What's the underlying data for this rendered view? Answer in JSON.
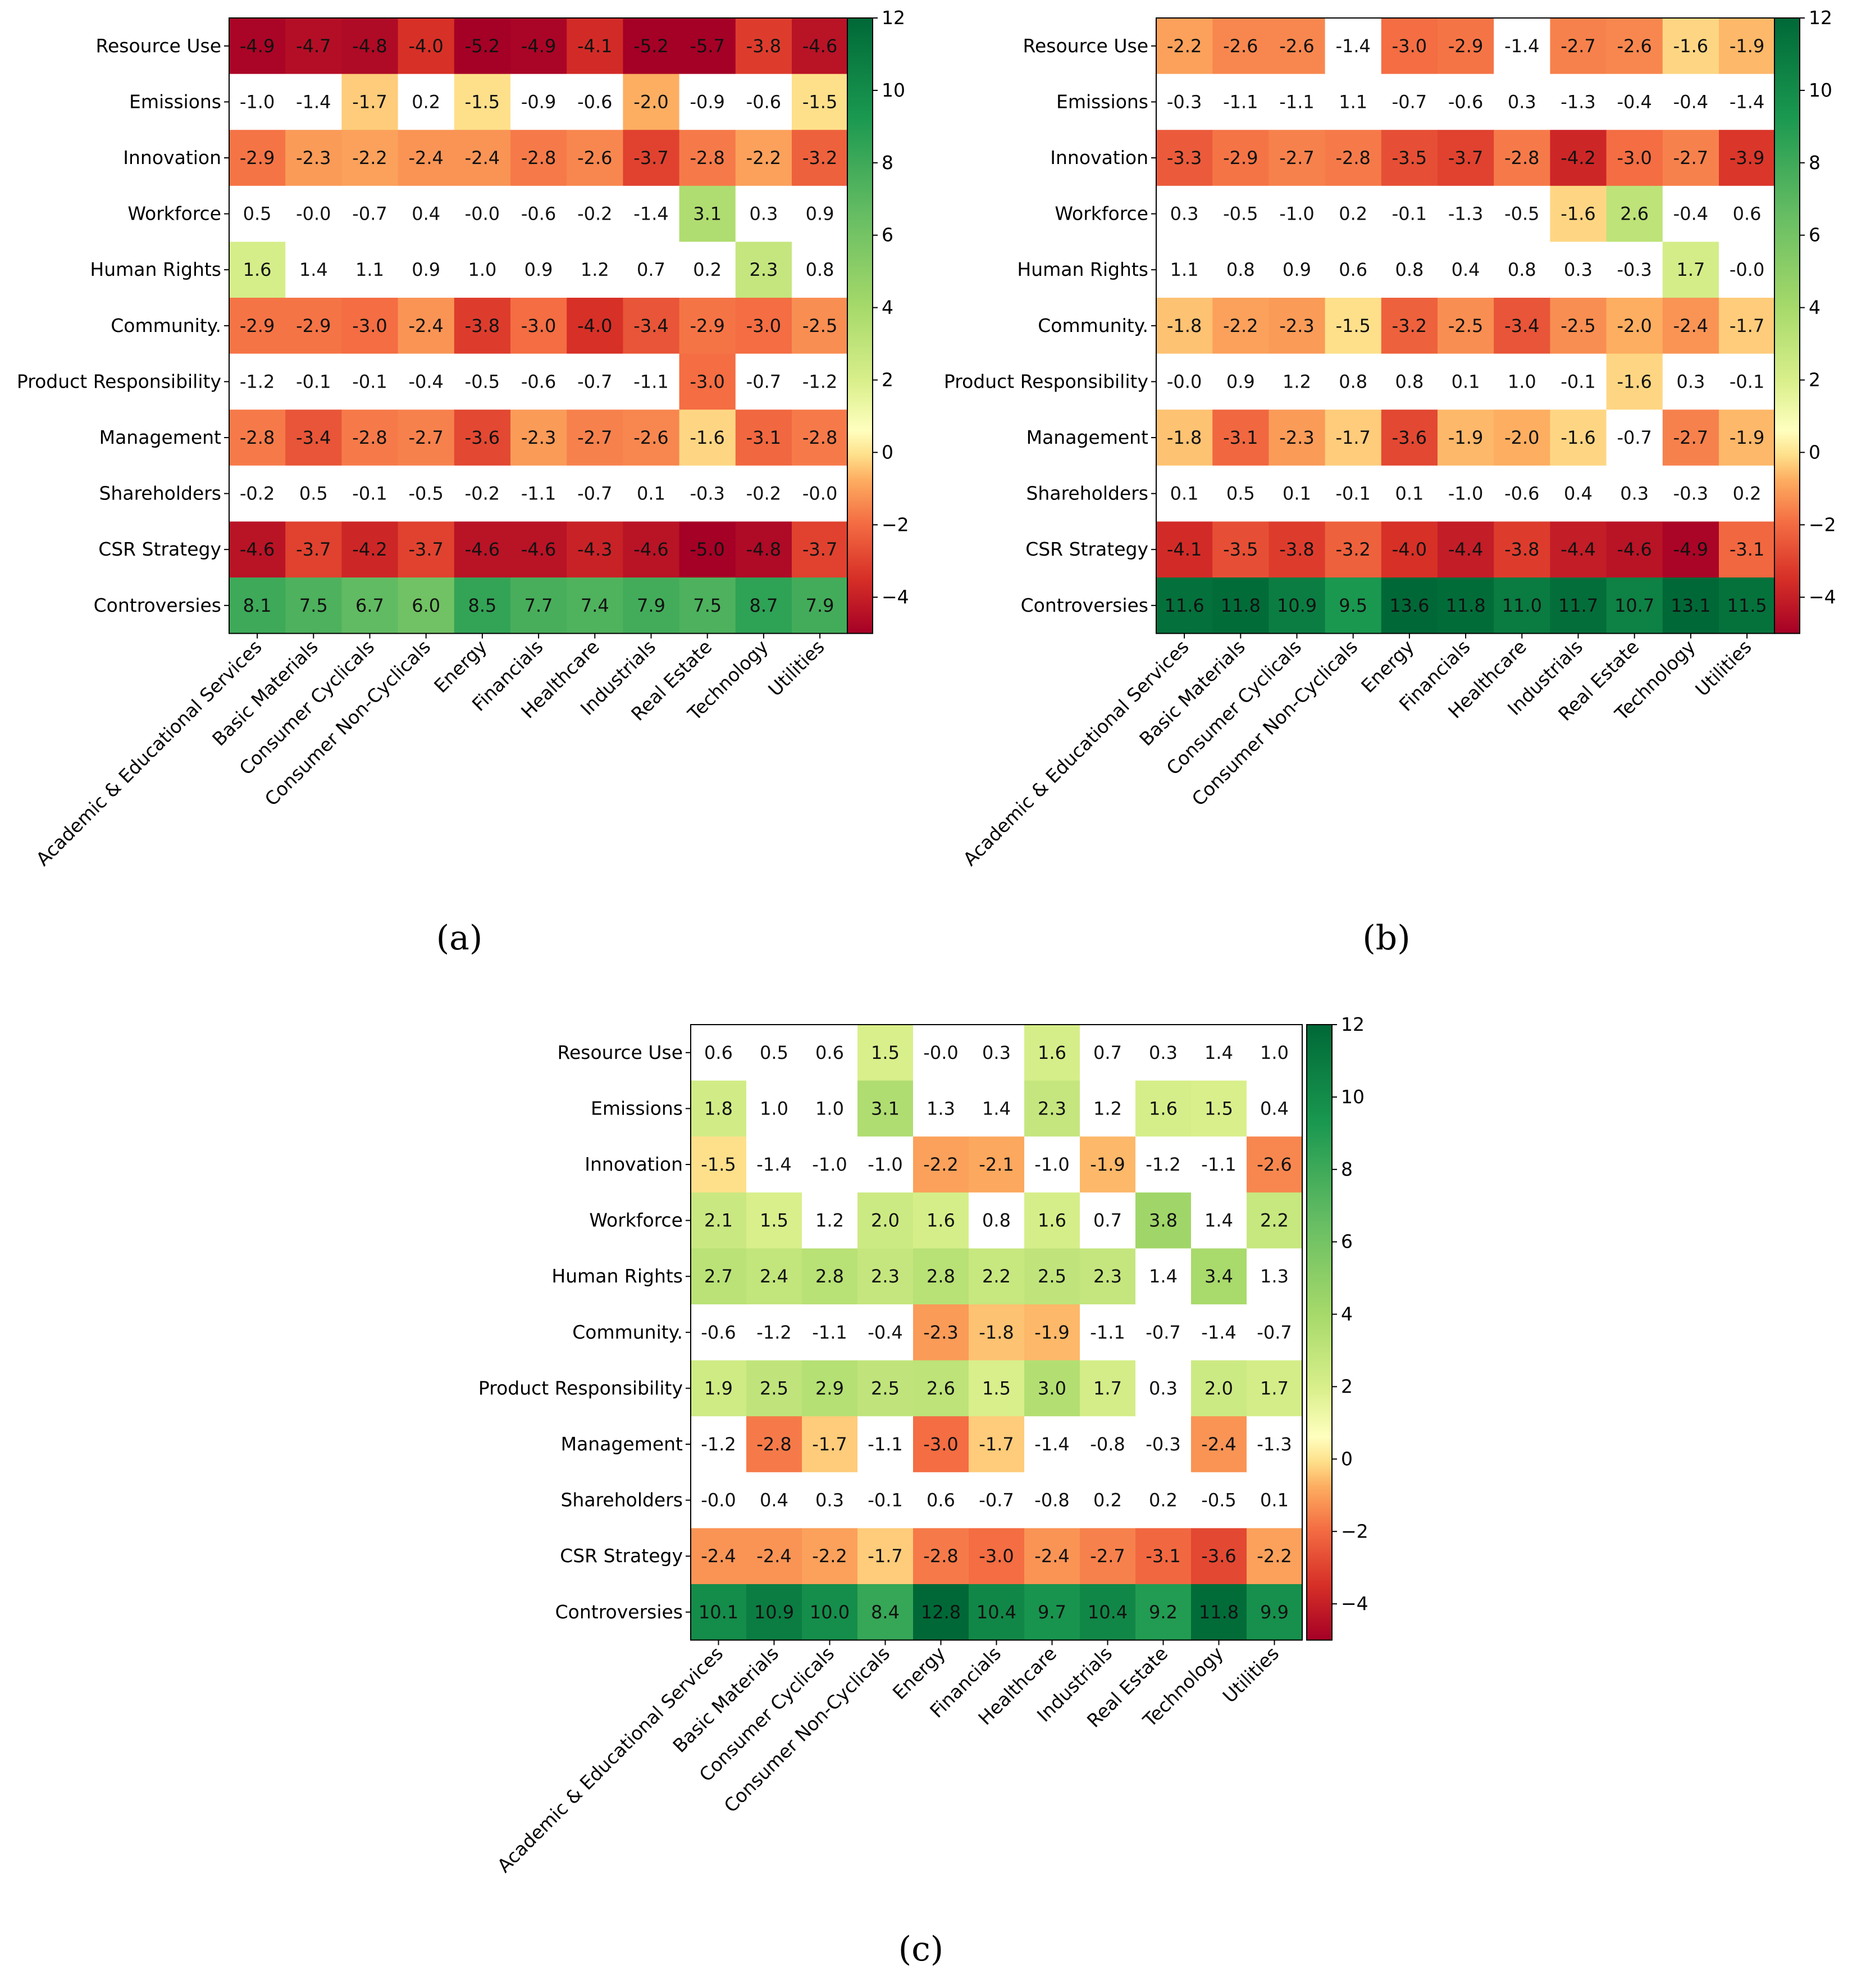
{
  "chart_data": [
    {
      "type": "heatmap",
      "caption": "(a)",
      "rows": [
        "Resource Use",
        "Emissions",
        "Innovation",
        "Workforce",
        "Human Rights",
        "Community.",
        "Product Responsibility",
        "Management",
        "Shareholders",
        "CSR Strategy",
        "Controversies"
      ],
      "columns": [
        "Academic & Educational Services",
        "Basic Materials",
        "Consumer Cyclicals",
        "Consumer Non-Cyclicals",
        "Energy",
        "Financials",
        "Healthcare",
        "Industrials",
        "Real Estate",
        "Technology",
        "Utilities"
      ],
      "values": [
        [
          "-4.9",
          "-4.7",
          "-4.8",
          "-4.0",
          "-5.2",
          "-4.9",
          "-4.1",
          "-5.2",
          "-5.7",
          "-3.8",
          "-4.6"
        ],
        [
          "-1.0",
          "-1.4",
          "-1.7",
          "0.2",
          "-1.5",
          "-0.9",
          "-0.6",
          "-2.0",
          "-0.9",
          "-0.6",
          "-1.5"
        ],
        [
          "-2.9",
          "-2.3",
          "-2.2",
          "-2.4",
          "-2.4",
          "-2.8",
          "-2.6",
          "-3.7",
          "-2.8",
          "-2.2",
          "-3.2"
        ],
        [
          "0.5",
          "-0.0",
          "-0.7",
          "0.4",
          "-0.0",
          "-0.6",
          "-0.2",
          "-1.4",
          "3.1",
          "0.3",
          "0.9"
        ],
        [
          "1.6",
          "1.4",
          "1.1",
          "0.9",
          "1.0",
          "0.9",
          "1.2",
          "0.7",
          "0.2",
          "2.3",
          "0.8"
        ],
        [
          "-2.9",
          "-2.9",
          "-3.0",
          "-2.4",
          "-3.8",
          "-3.0",
          "-4.0",
          "-3.4",
          "-2.9",
          "-3.0",
          "-2.5"
        ],
        [
          "-1.2",
          "-0.1",
          "-0.1",
          "-0.4",
          "-0.5",
          "-0.6",
          "-0.7",
          "-1.1",
          "-3.0",
          "-0.7",
          "-1.2"
        ],
        [
          "-2.8",
          "-3.4",
          "-2.8",
          "-2.7",
          "-3.6",
          "-2.3",
          "-2.7",
          "-2.6",
          "-1.6",
          "-3.1",
          "-2.8"
        ],
        [
          "-0.2",
          "0.5",
          "-0.1",
          "-0.5",
          "-0.2",
          "-1.1",
          "-0.7",
          "0.1",
          "-0.3",
          "-0.2",
          "-0.0"
        ],
        [
          "-4.6",
          "-3.7",
          "-4.2",
          "-3.7",
          "-4.6",
          "-4.6",
          "-4.3",
          "-4.6",
          "-5.0",
          "-4.8",
          "-3.7"
        ],
        [
          "8.1",
          "7.5",
          "6.7",
          "6.0",
          "8.5",
          "7.7",
          "7.4",
          "7.9",
          "7.5",
          "8.7",
          "7.9"
        ]
      ],
      "colorbar_ticks": [
        "12",
        "10",
        "8",
        "6",
        "4",
        "2",
        "0",
        "−2",
        "−4"
      ],
      "vmin": -5,
      "vmax": 12,
      "white_band": [
        -1.5,
        1.5
      ],
      "colormap": "RdYlGn"
    },
    {
      "type": "heatmap",
      "caption": "(b)",
      "rows": [
        "Resource Use",
        "Emissions",
        "Innovation",
        "Workforce",
        "Human Rights",
        "Community.",
        "Product Responsibility",
        "Management",
        "Shareholders",
        "CSR Strategy",
        "Controversies"
      ],
      "columns": [
        "Academic & Educational Services",
        "Basic Materials",
        "Consumer Cyclicals",
        "Consumer Non-Cyclicals",
        "Energy",
        "Financials",
        "Healthcare",
        "Industrials",
        "Real Estate",
        "Technology",
        "Utilities"
      ],
      "values": [
        [
          "-2.2",
          "-2.6",
          "-2.6",
          "-1.4",
          "-3.0",
          "-2.9",
          "-1.4",
          "-2.7",
          "-2.6",
          "-1.6",
          "-1.9"
        ],
        [
          "-0.3",
          "-1.1",
          "-1.1",
          "1.1",
          "-0.7",
          "-0.6",
          "0.3",
          "-1.3",
          "-0.4",
          "-0.4",
          "-1.4"
        ],
        [
          "-3.3",
          "-2.9",
          "-2.7",
          "-2.8",
          "-3.5",
          "-3.7",
          "-2.8",
          "-4.2",
          "-3.0",
          "-2.7",
          "-3.9"
        ],
        [
          "0.3",
          "-0.5",
          "-1.0",
          "0.2",
          "-0.1",
          "-1.3",
          "-0.5",
          "-1.6",
          "2.6",
          "-0.4",
          "0.6"
        ],
        [
          "1.1",
          "0.8",
          "0.9",
          "0.6",
          "0.8",
          "0.4",
          "0.8",
          "0.3",
          "-0.3",
          "1.7",
          "-0.0"
        ],
        [
          "-1.8",
          "-2.2",
          "-2.3",
          "-1.5",
          "-3.2",
          "-2.5",
          "-3.4",
          "-2.5",
          "-2.0",
          "-2.4",
          "-1.7"
        ],
        [
          "-0.0",
          "0.9",
          "1.2",
          "0.8",
          "0.8",
          "0.1",
          "1.0",
          "-0.1",
          "-1.6",
          "0.3",
          "-0.1"
        ],
        [
          "-1.8",
          "-3.1",
          "-2.3",
          "-1.7",
          "-3.6",
          "-1.9",
          "-2.0",
          "-1.6",
          "-0.7",
          "-2.7",
          "-1.9"
        ],
        [
          "0.1",
          "0.5",
          "0.1",
          "-0.1",
          "0.1",
          "-1.0",
          "-0.6",
          "0.4",
          "0.3",
          "-0.3",
          "0.2"
        ],
        [
          "-4.1",
          "-3.5",
          "-3.8",
          "-3.2",
          "-4.0",
          "-4.4",
          "-3.8",
          "-4.4",
          "-4.6",
          "-4.9",
          "-3.1"
        ],
        [
          "11.6",
          "11.8",
          "10.9",
          "9.5",
          "13.6",
          "11.8",
          "11.0",
          "11.7",
          "10.7",
          "13.1",
          "11.5"
        ]
      ],
      "colorbar_ticks": [
        "12",
        "10",
        "8",
        "6",
        "4",
        "2",
        "0",
        "−2",
        "−4"
      ],
      "vmin": -5,
      "vmax": 12,
      "white_band": [
        -1.5,
        1.5
      ],
      "colormap": "RdYlGn"
    },
    {
      "type": "heatmap",
      "caption": "(c)",
      "rows": [
        "Resource Use",
        "Emissions",
        "Innovation",
        "Workforce",
        "Human Rights",
        "Community.",
        "Product Responsibility",
        "Management",
        "Shareholders",
        "CSR Strategy",
        "Controversies"
      ],
      "columns": [
        "Academic & Educational Services",
        "Basic Materials",
        "Consumer Cyclicals",
        "Consumer Non-Cyclicals",
        "Energy",
        "Financials",
        "Healthcare",
        "Industrials",
        "Real Estate",
        "Technology",
        "Utilities"
      ],
      "values": [
        [
          "0.6",
          "0.5",
          "0.6",
          "1.5",
          "-0.0",
          "0.3",
          "1.6",
          "0.7",
          "0.3",
          "1.4",
          "1.0"
        ],
        [
          "1.8",
          "1.0",
          "1.0",
          "3.1",
          "1.3",
          "1.4",
          "2.3",
          "1.2",
          "1.6",
          "1.5",
          "0.4"
        ],
        [
          "-1.5",
          "-1.4",
          "-1.0",
          "-1.0",
          "-2.2",
          "-2.1",
          "-1.0",
          "-1.9",
          "-1.2",
          "-1.1",
          "-2.6"
        ],
        [
          "2.1",
          "1.5",
          "1.2",
          "2.0",
          "1.6",
          "0.8",
          "1.6",
          "0.7",
          "3.8",
          "1.4",
          "2.2"
        ],
        [
          "2.7",
          "2.4",
          "2.8",
          "2.3",
          "2.8",
          "2.2",
          "2.5",
          "2.3",
          "1.4",
          "3.4",
          "1.3"
        ],
        [
          "-0.6",
          "-1.2",
          "-1.1",
          "-0.4",
          "-2.3",
          "-1.8",
          "-1.9",
          "-1.1",
          "-0.7",
          "-1.4",
          "-0.7"
        ],
        [
          "1.9",
          "2.5",
          "2.9",
          "2.5",
          "2.6",
          "1.5",
          "3.0",
          "1.7",
          "0.3",
          "2.0",
          "1.7"
        ],
        [
          "-1.2",
          "-2.8",
          "-1.7",
          "-1.1",
          "-3.0",
          "-1.7",
          "-1.4",
          "-0.8",
          "-0.3",
          "-2.4",
          "-1.3"
        ],
        [
          "-0.0",
          "0.4",
          "0.3",
          "-0.1",
          "0.6",
          "-0.7",
          "-0.8",
          "0.2",
          "0.2",
          "-0.5",
          "0.1"
        ],
        [
          "-2.4",
          "-2.4",
          "-2.2",
          "-1.7",
          "-2.8",
          "-3.0",
          "-2.4",
          "-2.7",
          "-3.1",
          "-3.6",
          "-2.2"
        ],
        [
          "10.1",
          "10.9",
          "10.0",
          "8.4",
          "12.8",
          "10.4",
          "9.7",
          "10.4",
          "9.2",
          "11.8",
          "9.9"
        ]
      ],
      "colorbar_ticks": [
        "12",
        "10",
        "8",
        "6",
        "4",
        "2",
        "0",
        "−2",
        "−4"
      ],
      "vmin": -5,
      "vmax": 12,
      "white_band": [
        -1.5,
        1.5
      ],
      "colormap": "RdYlGn"
    }
  ]
}
